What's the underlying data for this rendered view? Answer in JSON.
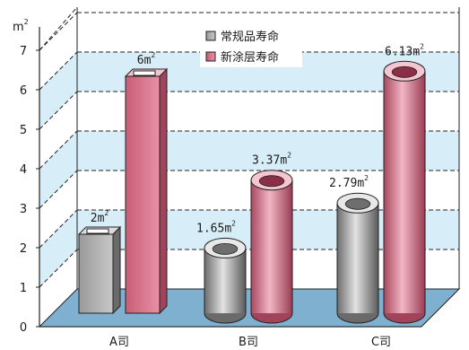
{
  "chart_data": {
    "type": "bar",
    "y_unit_base": "m",
    "y_unit_sup": "2",
    "ylim": [
      0,
      7
    ],
    "yticks": [
      "0",
      "1",
      "2",
      "3",
      "4",
      "5",
      "6",
      "7"
    ],
    "grid": true,
    "legend_position": "top-center",
    "categories": [
      "A司",
      "B司",
      "C司"
    ],
    "series": [
      {
        "name": "常规品寿命",
        "color": "#a0a0a0",
        "values": [
          2,
          1.65,
          2.79
        ],
        "labels": [
          {
            "base": "2m",
            "sup": "2"
          },
          {
            "base": "1.65m",
            "sup": "2"
          },
          {
            "base": "2.79m",
            "sup": "2"
          }
        ],
        "shapes": [
          "square",
          "round",
          "round"
        ]
      },
      {
        "name": "新涂层寿命",
        "color": "#d46b82",
        "values": [
          6,
          3.37,
          6.13
        ],
        "labels": [
          {
            "base": "6m",
            "sup": "2"
          },
          {
            "base": "3.37m",
            "sup": "2"
          },
          {
            "base": "6.13m",
            "sup": "2"
          }
        ],
        "shapes": [
          "square",
          "round",
          "round"
        ]
      }
    ]
  }
}
